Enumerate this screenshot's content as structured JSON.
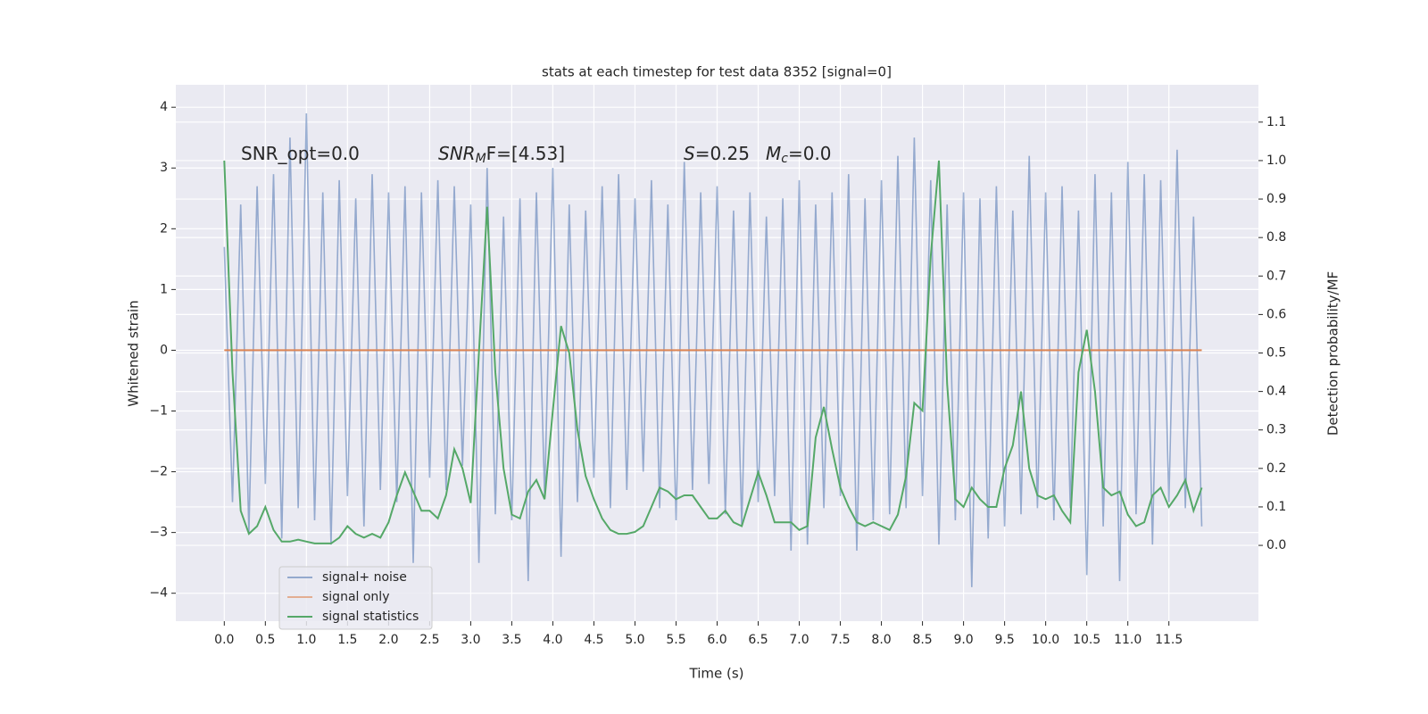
{
  "chart_data": {
    "type": "line",
    "title": "stats at each timestep for test data 8352 [signal=0]",
    "xlabel": "Time (s)",
    "ylabel": "Whitened strain",
    "y2label": "Detection probability/MF",
    "annotations": [
      {
        "parts": [
          "SNR_opt=0.0"
        ]
      },
      {
        "parts": [
          "SNR",
          "M",
          "F=[4.53]"
        ]
      },
      {
        "parts": [
          "S",
          "=0.25"
        ]
      },
      {
        "parts": [
          "M",
          "c",
          "=0.0"
        ]
      }
    ],
    "grid": true,
    "legend": "lower left",
    "xlim": [
      -0.59,
      12.59
    ],
    "ylim": [
      -4.46,
      4.37
    ],
    "y2lim": [
      -0.197,
      1.197
    ],
    "xticks": [
      {
        "value": 0,
        "label": "0.0"
      },
      0.5,
      {
        "value": 1,
        "label": "1.0"
      },
      1.5,
      {
        "value": 2,
        "label": "2.0"
      },
      2.5,
      {
        "value": 3,
        "label": "3.0"
      },
      3.5,
      {
        "value": 4,
        "label": "4.0"
      },
      4.5,
      {
        "value": 5,
        "label": "5.0"
      },
      5.5,
      {
        "value": 6,
        "label": "6.0"
      },
      6.5,
      {
        "value": 7,
        "label": "7.0"
      },
      7.5,
      {
        "value": 8,
        "label": "8.0"
      },
      8.5,
      {
        "value": 9,
        "label": "9.0"
      },
      9.5,
      {
        "value": 10,
        "label": "10.0"
      },
      10.5,
      {
        "value": 11,
        "label": "11.0"
      },
      11.5
    ],
    "yticks": [
      {
        "value": -4,
        "label": "−4"
      },
      {
        "value": -3,
        "label": "−3"
      },
      {
        "value": -2,
        "label": "−2"
      },
      {
        "value": -1,
        "label": "−1"
      },
      0,
      1,
      2,
      3,
      4
    ],
    "y2ticks": [
      {
        "value": 0,
        "label": "0.0"
      },
      0.1,
      0.2,
      0.3,
      0.4,
      0.5,
      0.6,
      0.7,
      0.8,
      0.9,
      {
        "value": 1,
        "label": "1.0"
      },
      1.1
    ],
    "x": [
      0.0,
      0.1,
      0.2,
      0.3,
      0.4,
      0.5,
      0.6,
      0.7,
      0.8,
      0.9,
      1.0,
      1.1,
      1.2,
      1.3,
      1.4,
      1.5,
      1.6,
      1.7,
      1.8,
      1.9,
      2.0,
      2.1,
      2.2,
      2.3,
      2.4,
      2.5,
      2.6,
      2.7,
      2.8,
      2.9,
      3.0,
      3.1,
      3.2,
      3.3,
      3.4,
      3.5,
      3.6,
      3.7,
      3.8,
      3.9,
      4.0,
      4.1,
      4.2,
      4.3,
      4.4,
      4.5,
      4.6,
      4.7,
      4.8,
      4.9,
      5.0,
      5.1,
      5.2,
      5.3,
      5.4,
      5.5,
      5.6,
      5.7,
      5.8,
      5.9,
      6.0,
      6.1,
      6.2,
      6.3,
      6.4,
      6.5,
      6.6,
      6.7,
      6.8,
      6.9,
      7.0,
      7.1,
      7.2,
      7.3,
      7.4,
      7.5,
      7.6,
      7.7,
      7.8,
      7.9,
      8.0,
      8.1,
      8.2,
      8.3,
      8.4,
      8.5,
      8.6,
      8.7,
      8.8,
      8.9,
      9.0,
      9.1,
      9.2,
      9.3,
      9.4,
      9.5,
      9.6,
      9.7,
      9.8,
      9.9,
      10.0,
      10.1,
      10.2,
      10.3,
      10.4,
      10.5,
      10.6,
      10.7,
      10.8,
      10.9,
      11.0,
      11.1,
      11.2,
      11.3,
      11.4,
      11.5,
      11.6,
      11.7,
      11.8,
      11.9
    ],
    "series": [
      {
        "name": "signal+ noise",
        "color": "#4c72b0",
        "values": [
          1.7,
          -2.5,
          2.4,
          -3.0,
          2.7,
          -2.2,
          2.9,
          -3.1,
          3.5,
          -2.6,
          3.9,
          -2.8,
          2.6,
          -3.2,
          2.8,
          -2.4,
          2.5,
          -2.9,
          2.9,
          -2.3,
          2.6,
          -2.5,
          2.7,
          -3.5,
          2.6,
          -2.1,
          2.8,
          -2.3,
          2.7,
          -1.9,
          2.4,
          -3.5,
          3.0,
          -2.7,
          2.2,
          -2.8,
          2.5,
          -3.8,
          2.6,
          -2.4,
          3.0,
          -3.4,
          2.4,
          -2.5,
          2.3,
          -2.1,
          2.7,
          -2.6,
          2.9,
          -2.3,
          2.5,
          -2.0,
          2.8,
          -2.6,
          2.4,
          -2.8,
          3.1,
          -2.3,
          2.6,
          -2.2,
          2.7,
          -2.7,
          2.3,
          -2.9,
          2.6,
          -2.5,
          2.2,
          -2.4,
          2.5,
          -3.3,
          2.8,
          -3.2,
          2.4,
          -2.6,
          2.6,
          -2.4,
          2.9,
          -3.3,
          2.5,
          -2.8,
          2.8,
          -2.7,
          3.2,
          -2.6,
          3.5,
          -2.4,
          2.8,
          -3.2,
          2.4,
          -2.8,
          2.6,
          -3.9,
          2.5,
          -3.1,
          2.7,
          -2.9,
          2.3,
          -2.7,
          3.2,
          -2.6,
          2.6,
          -2.8,
          2.7,
          -2.6,
          2.3,
          -3.7,
          2.9,
          -2.9,
          2.6,
          -3.8,
          3.1,
          -2.7,
          2.9,
          -3.2,
          2.8,
          -2.5,
          3.3,
          -2.6,
          2.2,
          -2.9
        ]
      },
      {
        "name": "signal only",
        "color": "#dd8452",
        "values": [
          0,
          0,
          0,
          0,
          0,
          0,
          0,
          0,
          0,
          0,
          0,
          0,
          0,
          0,
          0,
          0,
          0,
          0,
          0,
          0,
          0,
          0,
          0,
          0,
          0,
          0,
          0,
          0,
          0,
          0,
          0,
          0,
          0,
          0,
          0,
          0,
          0,
          0,
          0,
          0,
          0,
          0,
          0,
          0,
          0,
          0,
          0,
          0,
          0,
          0,
          0,
          0,
          0,
          0,
          0,
          0,
          0,
          0,
          0,
          0,
          0,
          0,
          0,
          0,
          0,
          0,
          0,
          0,
          0,
          0,
          0,
          0,
          0,
          0,
          0,
          0,
          0,
          0,
          0,
          0,
          0,
          0,
          0,
          0,
          0,
          0,
          0,
          0,
          0,
          0,
          0,
          0,
          0,
          0,
          0,
          0,
          0,
          0,
          0,
          0,
          0,
          0,
          0,
          0,
          0,
          0,
          0,
          0,
          0,
          0,
          0,
          0,
          0,
          0,
          0,
          0,
          0,
          0,
          0,
          0
        ]
      },
      {
        "name": "signal statistics",
        "color": "#55a868",
        "axis": "y2",
        "values": [
          1.0,
          0.45,
          0.09,
          0.03,
          0.05,
          0.1,
          0.04,
          0.01,
          0.01,
          0.015,
          0.01,
          0.005,
          0.005,
          0.005,
          0.02,
          0.05,
          0.03,
          0.02,
          0.03,
          0.02,
          0.06,
          0.13,
          0.19,
          0.14,
          0.09,
          0.09,
          0.07,
          0.13,
          0.25,
          0.2,
          0.11,
          0.5,
          0.88,
          0.45,
          0.2,
          0.08,
          0.07,
          0.14,
          0.17,
          0.12,
          0.35,
          0.57,
          0.5,
          0.3,
          0.18,
          0.12,
          0.07,
          0.04,
          0.03,
          0.03,
          0.035,
          0.05,
          0.1,
          0.15,
          0.14,
          0.12,
          0.13,
          0.13,
          0.1,
          0.07,
          0.07,
          0.09,
          0.06,
          0.05,
          0.12,
          0.19,
          0.13,
          0.06,
          0.06,
          0.06,
          0.04,
          0.05,
          0.28,
          0.36,
          0.25,
          0.15,
          0.1,
          0.06,
          0.05,
          0.06,
          0.05,
          0.04,
          0.08,
          0.18,
          0.37,
          0.35,
          0.75,
          1.0,
          0.42,
          0.12,
          0.1,
          0.15,
          0.12,
          0.1,
          0.1,
          0.2,
          0.26,
          0.4,
          0.2,
          0.13,
          0.12,
          0.13,
          0.09,
          0.06,
          0.45,
          0.56,
          0.4,
          0.15,
          0.13,
          0.14,
          0.08,
          0.05,
          0.06,
          0.13,
          0.15,
          0.1,
          0.13,
          0.17,
          0.09,
          0.15
        ]
      }
    ]
  }
}
